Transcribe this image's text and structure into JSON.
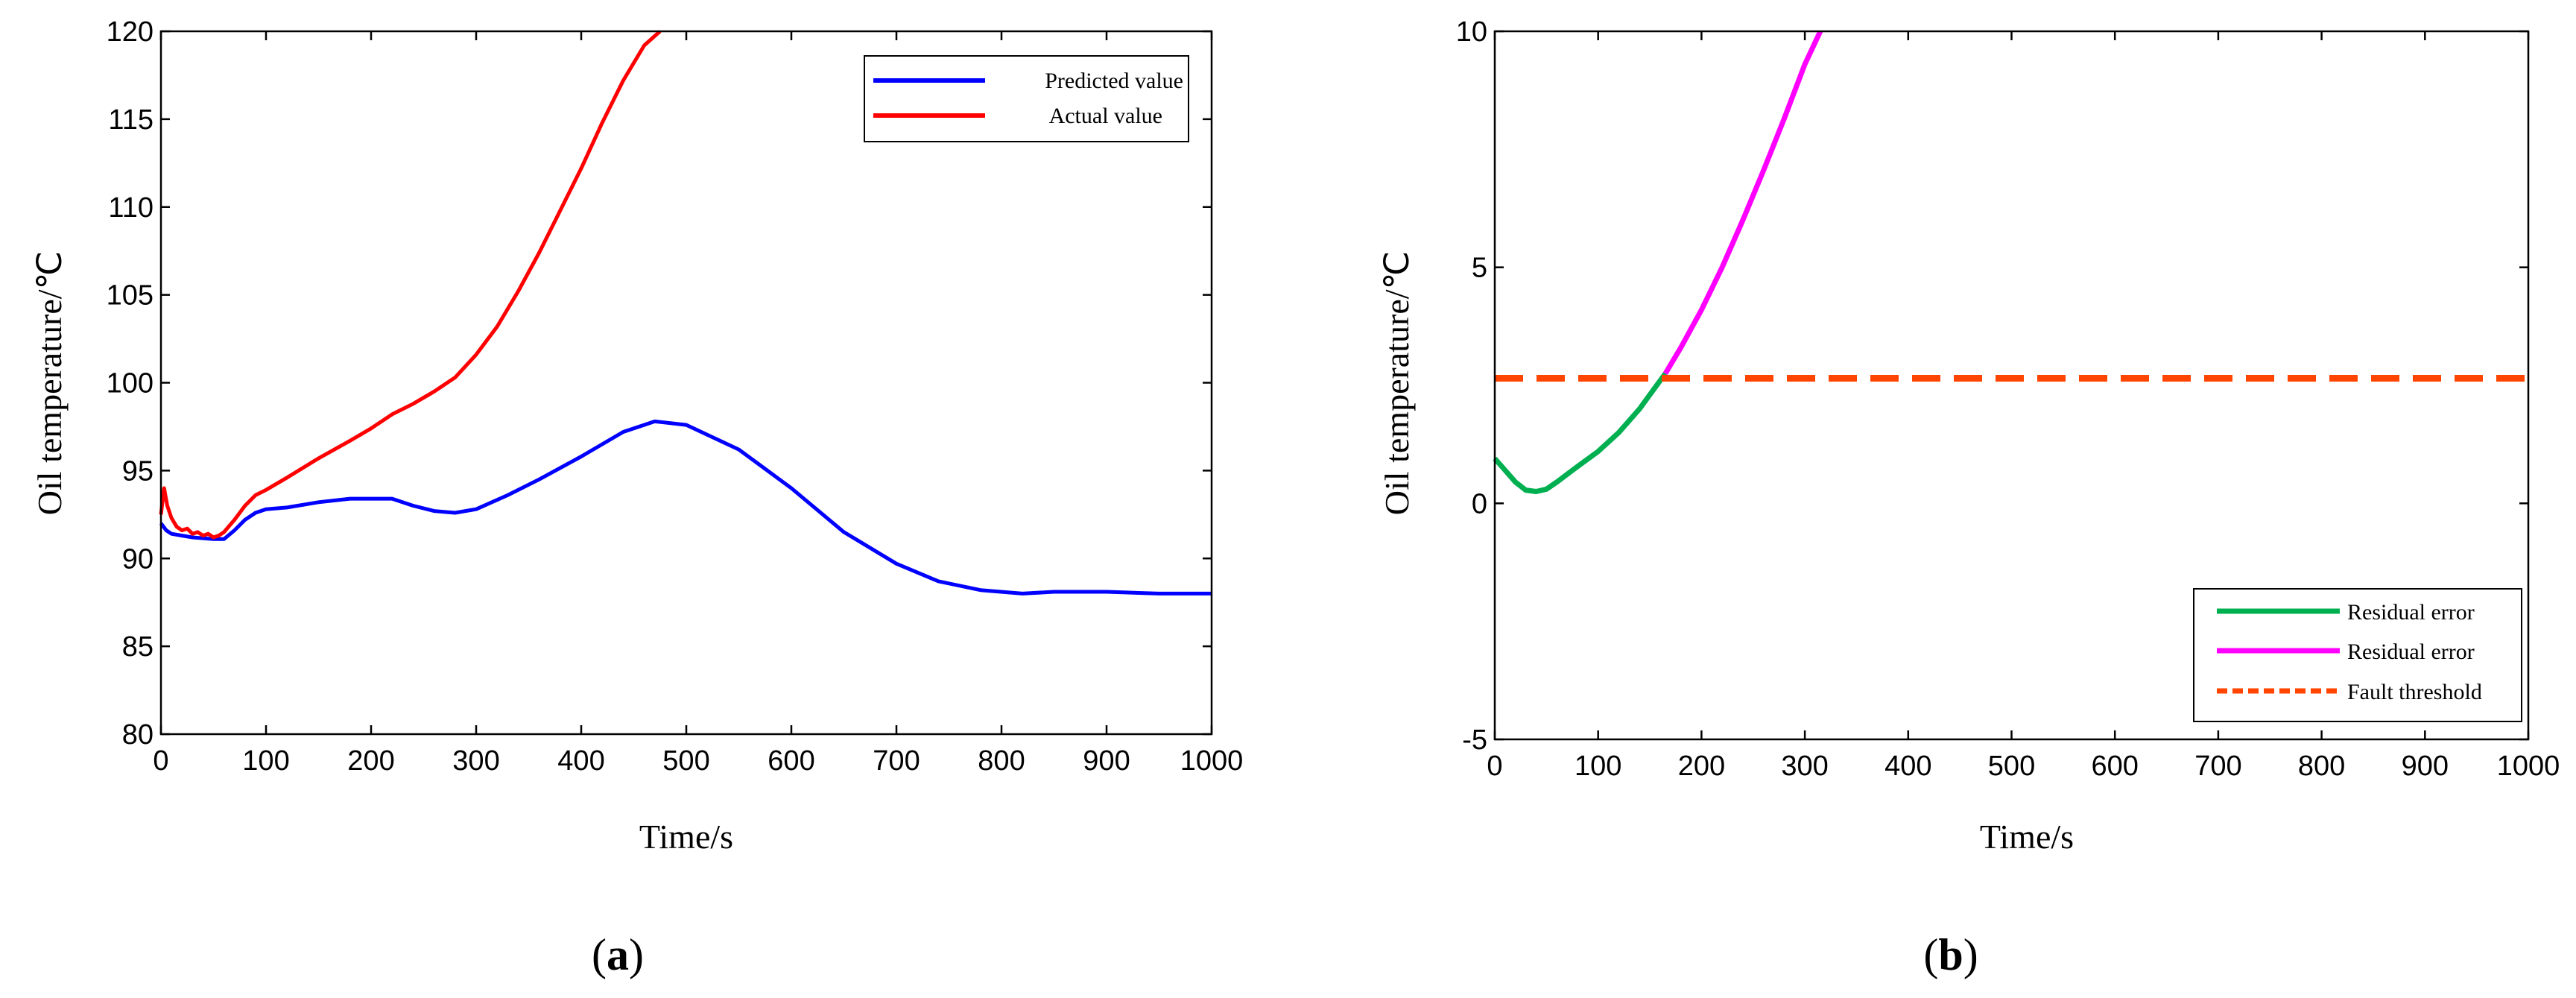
{
  "chart_data": [
    {
      "type": "line",
      "panel_label": "a",
      "xlabel": "Time/s",
      "ylabel": "Oil temperature/℃",
      "xlim": [
        0,
        1000
      ],
      "ylim": [
        80,
        120
      ],
      "xticks": [
        0,
        100,
        200,
        300,
        400,
        500,
        600,
        700,
        800,
        900,
        1000
      ],
      "yticks": [
        80,
        85,
        90,
        95,
        100,
        105,
        110,
        115,
        120
      ],
      "legend_position": "top-right",
      "series": [
        {
          "name": "Predicted value",
          "color": "#0000ff",
          "dash": "solid",
          "x": [
            0,
            5,
            10,
            20,
            30,
            40,
            50,
            60,
            70,
            80,
            90,
            100,
            120,
            150,
            180,
            200,
            220,
            240,
            260,
            280,
            300,
            330,
            360,
            400,
            440,
            470,
            500,
            550,
            600,
            650,
            700,
            740,
            780,
            820,
            850,
            900,
            950,
            1000
          ],
          "values": [
            92.0,
            91.6,
            91.4,
            91.3,
            91.2,
            91.15,
            91.1,
            91.1,
            91.6,
            92.2,
            92.6,
            92.8,
            92.9,
            93.2,
            93.4,
            93.4,
            93.4,
            93.0,
            92.7,
            92.6,
            92.8,
            93.6,
            94.5,
            95.8,
            97.2,
            97.8,
            97.6,
            96.2,
            94.0,
            91.5,
            89.7,
            88.7,
            88.2,
            88.0,
            88.1,
            88.1,
            88.0,
            88.0
          ]
        },
        {
          "name": "Actual value",
          "color": "#ff0000",
          "dash": "solid",
          "x": [
            0,
            3,
            6,
            10,
            15,
            20,
            25,
            30,
            35,
            40,
            45,
            50,
            55,
            60,
            70,
            80,
            90,
            100,
            120,
            150,
            180,
            200,
            220,
            240,
            260,
            280,
            300,
            320,
            340,
            360,
            380,
            400,
            420,
            440,
            460,
            475
          ],
          "values": [
            92.5,
            94.0,
            93.0,
            92.3,
            91.8,
            91.6,
            91.7,
            91.4,
            91.5,
            91.3,
            91.4,
            91.2,
            91.3,
            91.5,
            92.2,
            93.0,
            93.6,
            93.9,
            94.6,
            95.7,
            96.7,
            97.4,
            98.2,
            98.8,
            99.5,
            100.3,
            101.6,
            103.2,
            105.2,
            107.4,
            109.8,
            112.2,
            114.8,
            117.2,
            119.2,
            120.0
          ]
        }
      ]
    },
    {
      "type": "line",
      "panel_label": "b",
      "xlabel": "Time/s",
      "ylabel": "Oil temperature/℃",
      "xlim": [
        0,
        1000
      ],
      "ylim": [
        -5,
        10
      ],
      "xticks": [
        0,
        100,
        200,
        300,
        400,
        500,
        600,
        700,
        800,
        900,
        1000
      ],
      "yticks": [
        -5,
        0,
        5,
        10
      ],
      "legend_position": "bottom-right",
      "series": [
        {
          "name": "Residual error",
          "color": "#00b050",
          "dash": "solid",
          "x": [
            0,
            10,
            20,
            30,
            40,
            50,
            60,
            80,
            100,
            120,
            140,
            160,
            165
          ],
          "values": [
            0.95,
            0.7,
            0.45,
            0.28,
            0.25,
            0.3,
            0.45,
            0.78,
            1.1,
            1.5,
            2.0,
            2.6,
            2.75
          ]
        },
        {
          "name": "Residual error",
          "color": "#ff00ff",
          "dash": "solid",
          "x": [
            165,
            180,
            200,
            220,
            240,
            260,
            280,
            300,
            315
          ],
          "values": [
            2.75,
            3.3,
            4.1,
            5.0,
            6.0,
            7.05,
            8.15,
            9.3,
            10.0
          ]
        },
        {
          "name": "Fault threshold",
          "color": "#ff4500",
          "dash": "dashed",
          "x": [
            0,
            1000
          ],
          "values": [
            2.65,
            2.65
          ]
        }
      ]
    }
  ]
}
